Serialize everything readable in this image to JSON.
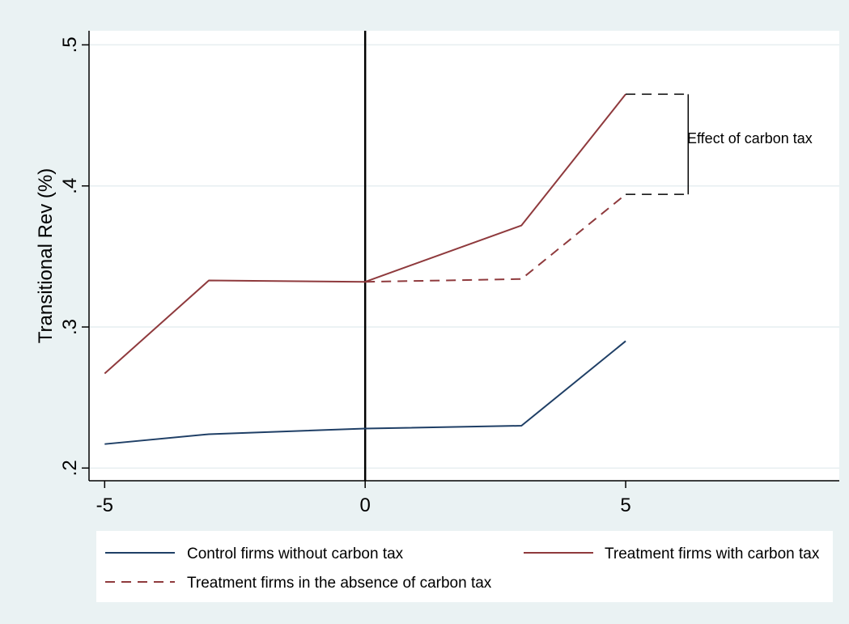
{
  "chart_data": {
    "type": "line",
    "ylabel": "Transitional Rev (%)",
    "xlabel": "",
    "xlim": [
      -5.3,
      9.1
    ],
    "ylim": [
      0.191,
      0.51
    ],
    "xticks": [
      -5,
      0,
      5
    ],
    "xtick_labels": [
      "-5",
      "0",
      "5"
    ],
    "yticks": [
      0.2,
      0.3,
      0.4,
      0.5
    ],
    "ytick_labels": [
      ".2",
      ".3",
      ".4",
      ".5"
    ],
    "grid": true,
    "vertical_line_x": 0,
    "series": [
      {
        "name": "Control firms without carbon tax",
        "color": "#1f3f66",
        "dash": "solid",
        "x": [
          -5,
          -3,
          0,
          3,
          5
        ],
        "y": [
          0.217,
          0.224,
          0.228,
          0.23,
          0.29
        ]
      },
      {
        "name": "Treatment firms with carbon tax",
        "color": "#8f3a3d",
        "dash": "solid",
        "x": [
          -5,
          -3,
          0,
          3,
          5
        ],
        "y": [
          0.267,
          0.333,
          0.332,
          0.372,
          0.465
        ]
      },
      {
        "name": "Treatment firms in the absence of carbon tax",
        "color": "#8f3a3d",
        "dash": "dashed",
        "x": [
          0,
          3,
          5
        ],
        "y": [
          0.332,
          0.334,
          0.394
        ]
      }
    ],
    "annotation": {
      "text": "Effect of carbon tax",
      "x_start": 5,
      "x_end": 6.2,
      "y_top": 0.465,
      "y_bottom": 0.394
    },
    "legend_placement": "bottom"
  }
}
